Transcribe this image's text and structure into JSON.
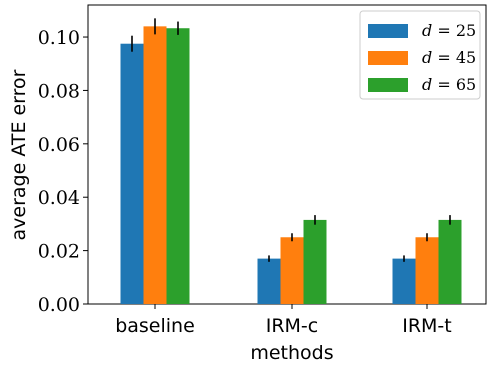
{
  "chart_data": {
    "type": "bar",
    "xlabel": "methods",
    "ylabel": "average ATE error",
    "categories": [
      "baseline",
      "IRM-c",
      "IRM-t"
    ],
    "ylim": [
      0,
      0.112
    ],
    "yticks": [
      "0.00",
      "0.02",
      "0.04",
      "0.06",
      "0.08",
      "0.10"
    ],
    "series": [
      {
        "name": "d = 25",
        "legend_var": "d",
        "legend_eq": " = ",
        "legend_val": "25",
        "color": "#1f77b4",
        "values": [
          0.0975,
          0.017,
          0.017
        ],
        "errors": [
          0.003,
          0.0012,
          0.0012
        ]
      },
      {
        "name": "d = 45",
        "legend_var": "d",
        "legend_eq": " = ",
        "legend_val": "45",
        "color": "#ff7f0e",
        "values": [
          0.104,
          0.025,
          0.025
        ],
        "errors": [
          0.003,
          0.0015,
          0.0015
        ]
      },
      {
        "name": "d = 65",
        "legend_var": "d",
        "legend_eq": " = ",
        "legend_val": "65",
        "color": "#2ca02c",
        "values": [
          0.1033,
          0.0315,
          0.0315
        ],
        "errors": [
          0.0025,
          0.0018,
          0.0018
        ]
      }
    ],
    "legend_position": "top-right",
    "grid": false
  }
}
